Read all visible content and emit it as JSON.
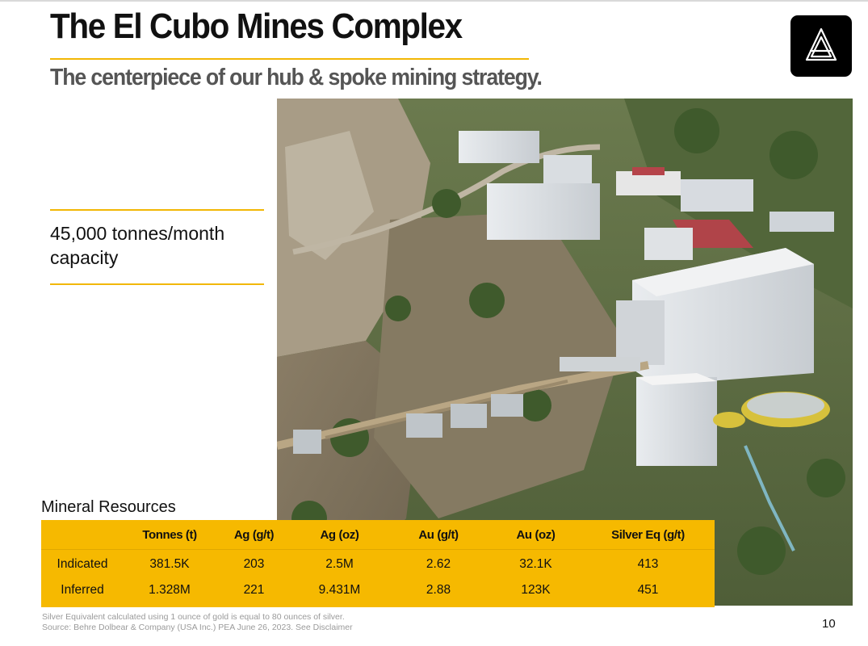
{
  "header": {
    "title": "The El Cubo Mines Complex",
    "subtitle": "The centerpiece of our hub & spoke mining strategy.",
    "logo_icon": "triangle-logo-icon"
  },
  "highlight": {
    "capacity_line1": "45,000 tonnes/month",
    "capacity_line2": "capacity"
  },
  "photo": {
    "icon": "mine-aerial-photo"
  },
  "resources": {
    "title": "Mineral Resources",
    "columns": [
      "",
      "Tonnes (t)",
      "Ag (g/t)",
      "Ag (oz)",
      "Au (g/t)",
      "Au (oz)",
      "Silver Eq (g/t)"
    ],
    "rows": [
      [
        "Indicated",
        "381.5K",
        "203",
        "2.5M",
        "2.62",
        "32.1K",
        "413"
      ],
      [
        "Inferred",
        "1.328M",
        "221",
        "9.431M",
        "2.88",
        "123K",
        "451"
      ]
    ]
  },
  "footer": {
    "note1": "Silver Equivalent calculated using 1 ounce of gold is equal to 80 ounces of silver.",
    "note2": "Source: Behre Dolbear & Company (USA Inc.) PEA June 26, 2023. See Disclaimer",
    "page_number": "10"
  },
  "colors": {
    "accent": "#f6b900",
    "title": "#111111",
    "subtitle": "#555555",
    "footnote": "#9a9a9a"
  }
}
